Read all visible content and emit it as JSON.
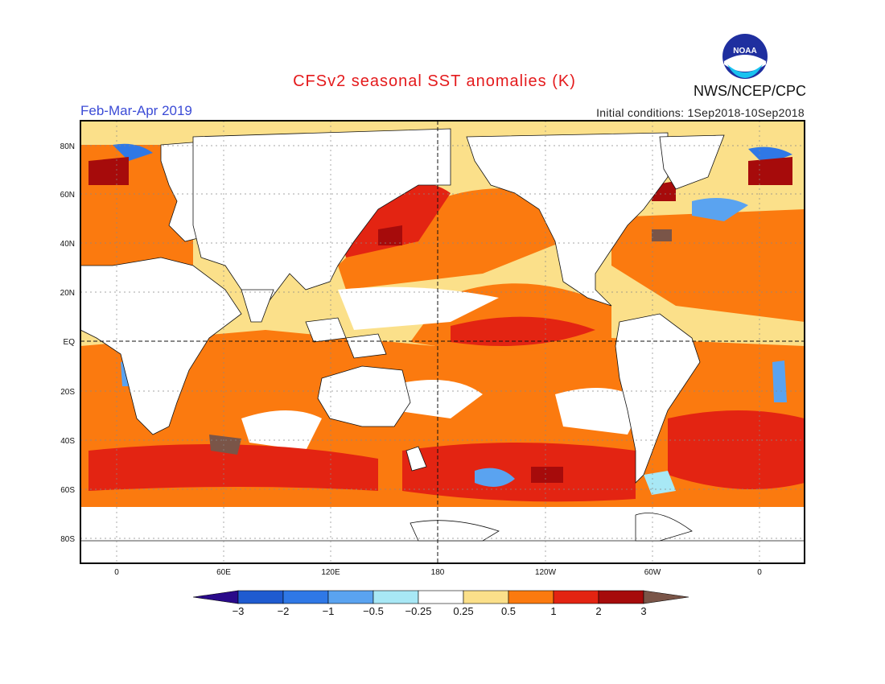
{
  "title": "CFSv2 seasonal SST anomalies (K)",
  "period": "Feb-Mar-Apr 2019",
  "initial_conditions": "Initial conditions: 1Sep2018-10Sep2018",
  "agency": "NWS/NCEP/CPC",
  "logo_text": "NOAA",
  "lat_labels": [
    "80N",
    "60N",
    "40N",
    "20N",
    "EQ",
    "20S",
    "40S",
    "60S",
    "80S"
  ],
  "lon_labels": [
    "0",
    "60E",
    "120E",
    "180",
    "120W",
    "60W",
    "0"
  ],
  "colorbar": {
    "labels": [
      "-3",
      "-2",
      "-1",
      "-0.5",
      "-0.25",
      "0.25",
      "0.5",
      "1",
      "2",
      "3"
    ],
    "colors": [
      "#2a0a8a",
      "#1f5bd0",
      "#2f78e6",
      "#5aa3f0",
      "#a8e8f5",
      "#ffffff",
      "#fbe08a",
      "#fb7a0f",
      "#e32412",
      "#a60b0b",
      "#7a5548"
    ]
  }
}
